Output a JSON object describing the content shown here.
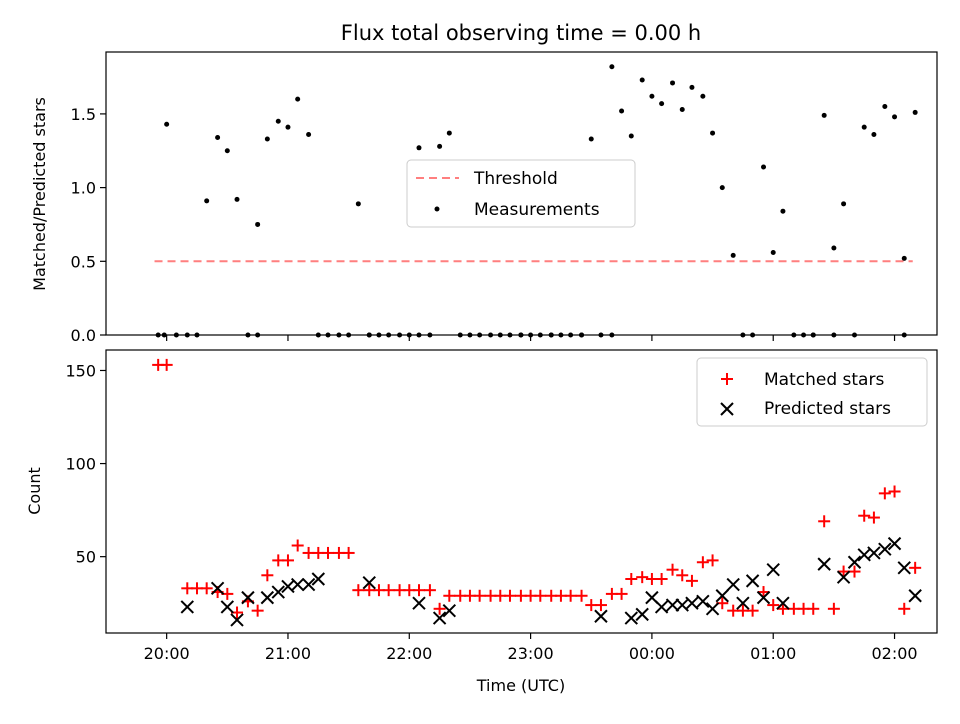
{
  "title": "Flux total observing time = 0.00 h",
  "chart_data": [
    {
      "type": "scatter",
      "ylabel": "Matched/Predicted stars",
      "ylim": [
        0,
        1.92
      ],
      "yticks": [
        0,
        0.5,
        1.0,
        1.5
      ],
      "yticklabels": [
        "0.0",
        "0.5",
        "1.0",
        "1.5"
      ],
      "xlim_hours": [
        19.5,
        26.35
      ],
      "legend_position": "center",
      "threshold": {
        "name": "Threshold",
        "value": 0.5,
        "x_range_hours": [
          19.9,
          26.15
        ],
        "color": "#ff7f7f"
      },
      "series": [
        {
          "name": "Measurements",
          "color": "#000000",
          "x": [
            19.93,
            20.0,
            20.08,
            20.25,
            20.33,
            20.42,
            20.5,
            20.58,
            20.67,
            20.75,
            20.83,
            20.92,
            21.0,
            21.08,
            21.17,
            21.25,
            21.33,
            21.42,
            21.5,
            21.58,
            21.67,
            21.75,
            21.83,
            21.92,
            22.0,
            22.08,
            22.17,
            22.25,
            22.33,
            22.42,
            22.5,
            22.58,
            22.67,
            22.75,
            22.83,
            22.92,
            23.0,
            23.08,
            23.17,
            23.25,
            23.33,
            23.42,
            23.5,
            23.58,
            23.67,
            23.75,
            23.83,
            23.92,
            24.0,
            24.08,
            24.17,
            24.25,
            24.33,
            24.42,
            24.5,
            24.58,
            24.67,
            24.75,
            24.83,
            24.92,
            25.0,
            25.08,
            25.17,
            25.25,
            25.33,
            25.42,
            25.5,
            25.58,
            25.67,
            25.75,
            25.83,
            25.92,
            26.0,
            26.08,
            26.17
          ],
          "y": [
            0,
            1.43,
            0,
            0,
            0.91,
            1.34,
            1.25,
            0.92,
            0,
            0.75,
            1.33,
            1.45,
            1.41,
            1.6,
            1.36,
            0,
            0,
            0,
            0,
            0.89,
            0,
            0,
            0,
            0,
            0,
            1.27,
            0,
            1.28,
            1.37,
            0,
            0,
            0,
            0,
            0,
            0,
            0,
            0,
            0,
            0,
            0,
            0,
            0,
            1.33,
            0,
            1.82,
            1.52,
            1.35,
            1.73,
            1.62,
            1.57,
            1.71,
            1.53,
            1.68,
            1.62,
            1.37,
            1.0,
            0.54,
            0,
            0,
            1.14,
            0.56,
            0.84,
            0,
            0,
            0,
            1.49,
            0.59,
            0.89,
            0,
            1.41,
            1.36,
            1.55,
            1.48,
            0.52,
            1.51
          ]
        },
        {
          "name": "",
          "color": "#000000",
          "x": [
            19.98,
            20.17,
            20.75,
            21.67,
            22.08,
            22.92,
            23.17,
            23.42,
            23.67,
            25.33,
            25.5,
            26.08
          ],
          "y": [
            0,
            0,
            0,
            0,
            0,
            0,
            0,
            0,
            0,
            0,
            0,
            0
          ]
        }
      ],
      "legend": [
        "Threshold",
        "Measurements"
      ]
    },
    {
      "type": "scatter",
      "xlabel": "Time (UTC)",
      "ylabel": "Count",
      "ylim": [
        9,
        161
      ],
      "yticks": [
        50,
        100,
        150
      ],
      "yticklabels": [
        "50",
        "100",
        "150"
      ],
      "xlim_hours": [
        19.5,
        26.35
      ],
      "xticks_hours": [
        20,
        21,
        22,
        23,
        24,
        25,
        26
      ],
      "xticklabels": [
        "20:00",
        "21:00",
        "22:00",
        "23:00",
        "00:00",
        "01:00",
        "02:00"
      ],
      "legend_position": "upper right",
      "series": [
        {
          "name": "Matched stars",
          "marker": "plus",
          "color": "#ff0000",
          "x": [
            19.93,
            20.0,
            20.17,
            20.25,
            20.33,
            20.42,
            20.5,
            20.58,
            20.67,
            20.75,
            20.83,
            20.92,
            21.0,
            21.08,
            21.17,
            21.25,
            21.33,
            21.42,
            21.5,
            21.58,
            21.67,
            21.75,
            21.83,
            21.92,
            22.0,
            22.08,
            22.17,
            22.25,
            22.33,
            22.42,
            22.5,
            22.58,
            22.67,
            22.75,
            22.83,
            22.92,
            23.0,
            23.08,
            23.17,
            23.25,
            23.33,
            23.42,
            23.5,
            23.58,
            23.67,
            23.75,
            23.83,
            23.92,
            24.0,
            24.08,
            24.17,
            24.25,
            24.33,
            24.42,
            24.5,
            24.58,
            24.67,
            24.75,
            24.83,
            24.92,
            25.0,
            25.08,
            25.17,
            25.25,
            25.33,
            25.42,
            25.5,
            25.58,
            25.67,
            25.75,
            25.83,
            25.92,
            26.0,
            26.08,
            26.17
          ],
          "y": [
            153,
            153,
            33,
            33,
            33,
            31,
            30,
            20,
            26,
            21,
            40,
            48,
            48,
            56,
            52,
            52,
            52,
            52,
            52,
            32,
            32,
            32,
            32,
            32,
            32,
            32,
            32,
            22,
            29,
            29,
            29,
            29,
            29,
            29,
            29,
            29,
            29,
            29,
            29,
            29,
            29,
            29,
            24,
            24,
            30,
            30,
            38,
            39,
            38,
            38,
            43,
            40,
            37,
            47,
            48,
            25,
            21,
            21,
            21,
            31,
            24,
            22,
            22,
            22,
            22,
            69,
            22,
            42,
            42,
            72,
            71,
            84,
            85,
            22,
            44
          ]
        },
        {
          "name": "Predicted stars",
          "marker": "x",
          "color": "#000000",
          "x": [
            20.17,
            20.42,
            20.5,
            20.58,
            20.67,
            20.83,
            20.92,
            21.0,
            21.08,
            21.17,
            21.25,
            21.67,
            22.08,
            22.25,
            22.33,
            23.58,
            23.83,
            23.92,
            24.0,
            24.08,
            24.17,
            24.25,
            24.33,
            24.42,
            24.5,
            24.58,
            24.67,
            24.75,
            24.83,
            24.92,
            25.0,
            25.08,
            25.42,
            25.58,
            25.67,
            25.75,
            25.83,
            25.92,
            26.0,
            26.08,
            26.17
          ],
          "y": [
            23,
            33,
            23,
            16,
            28,
            28,
            31,
            34,
            35,
            35,
            38,
            36,
            25,
            17,
            21,
            18,
            17,
            19,
            28,
            23,
            24,
            24,
            25,
            26,
            22,
            29,
            35,
            25,
            37,
            28,
            43,
            25,
            46,
            39,
            47,
            51,
            52,
            54,
            57,
            44,
            29
          ]
        }
      ],
      "legend": [
        "Matched stars",
        "Predicted stars"
      ]
    }
  ]
}
